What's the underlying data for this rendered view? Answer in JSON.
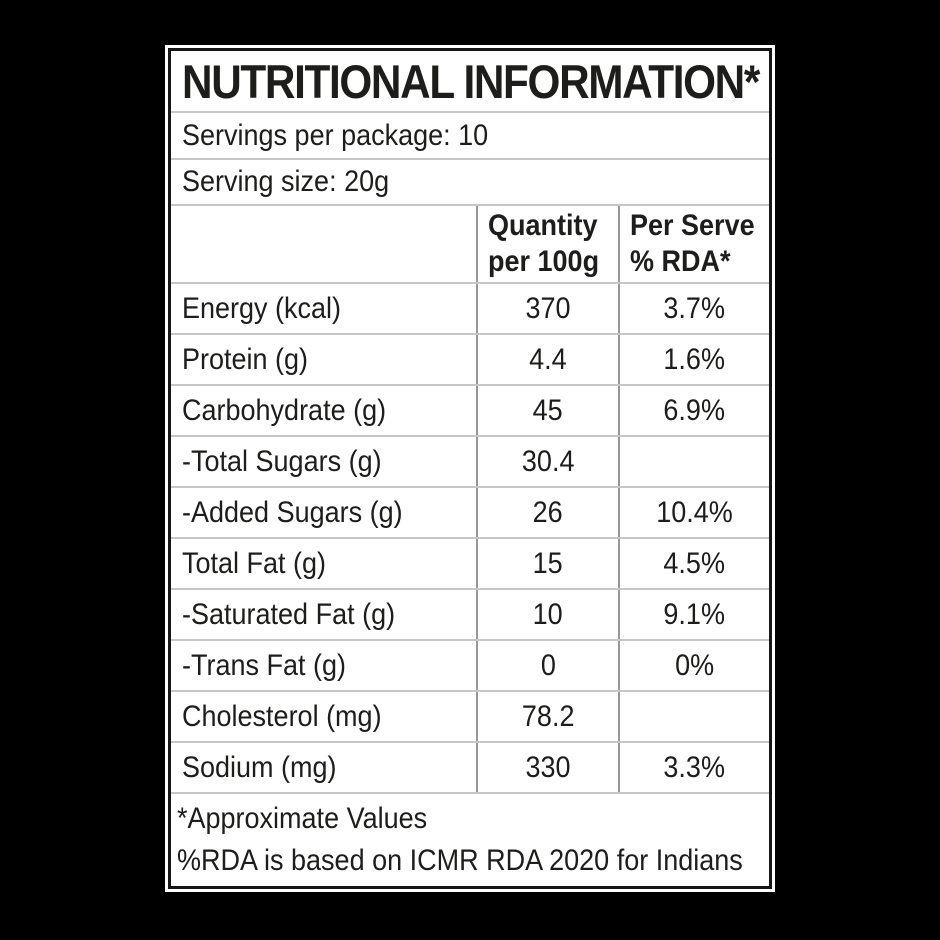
{
  "label": {
    "title": "NUTRITIONAL INFORMATION*",
    "servings_line": "Servings per package: 10",
    "serving_size_line": "Serving size: 20g",
    "columns": {
      "quantity_line1": "Quantity",
      "quantity_line2": "per 100g",
      "rda_line1": "Per Serve",
      "rda_line2": "% RDA*"
    },
    "rows": [
      {
        "name": "Energy (kcal)",
        "qty": "370",
        "rda": "3.7%"
      },
      {
        "name": "Protein (g)",
        "qty": "4.4",
        "rda": "1.6%"
      },
      {
        "name": "Carbohydrate (g)",
        "qty": "45",
        "rda": "6.9%"
      },
      {
        "name": "-Total Sugars (g)",
        "qty": "30.4",
        "rda": ""
      },
      {
        "name": "-Added Sugars (g)",
        "qty": "26",
        "rda": "10.4%"
      },
      {
        "name": "Total Fat (g)",
        "qty": "15",
        "rda": "4.5%"
      },
      {
        "name": "-Saturated Fat (g)",
        "qty": "10",
        "rda": "9.1%"
      },
      {
        "name": "-Trans Fat (g)",
        "qty": "0",
        "rda": "0%"
      },
      {
        "name": "Cholesterol (mg)",
        "qty": "78.2",
        "rda": ""
      },
      {
        "name": "Sodium (mg)",
        "qty": "330",
        "rda": "3.3%"
      }
    ],
    "footnotes": {
      "line1": "*Approximate Values",
      "line2": "%RDA is based on ICMR RDA 2020 for Indians"
    },
    "colors": {
      "page_background": "#000000",
      "card_background": "#ffffff",
      "text": "#1d1d1b",
      "frame_border": "#161616",
      "grid_horizontal": "#c6c6c6",
      "grid_vertical": "#979797"
    }
  }
}
